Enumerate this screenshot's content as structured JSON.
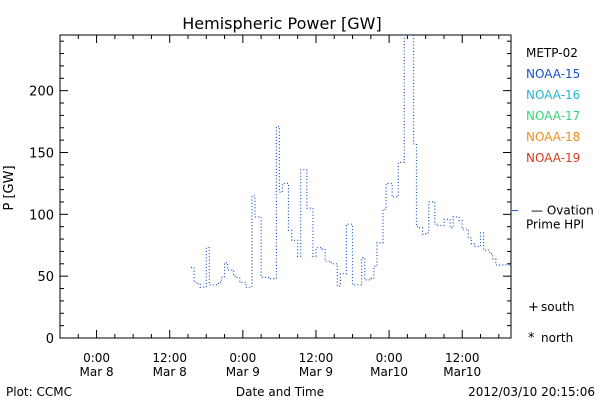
{
  "chart_data": {
    "type": "line",
    "title": "Hemispheric Power [GW]",
    "xlabel": "Date and Time",
    "ylabel": "P [GW]",
    "ylim": [
      0,
      245
    ],
    "xlim": [
      -6,
      68
    ],
    "x_unit": "hours from 0:00 Mar 8",
    "x_ticks": [
      {
        "value": 0,
        "line1": "0:00",
        "line2": "Mar 8"
      },
      {
        "value": 12,
        "line1": "12:00",
        "line2": "Mar 8"
      },
      {
        "value": 24,
        "line1": "0:00",
        "line2": "Mar 9"
      },
      {
        "value": 36,
        "line1": "12:00",
        "line2": "Mar 9"
      },
      {
        "value": 48,
        "line1": "0:00",
        "line2": "Mar10"
      },
      {
        "value": 60,
        "line1": "12:00",
        "line2": "Mar10"
      }
    ],
    "y_ticks": [
      0,
      50,
      100,
      150,
      200
    ],
    "y_minor_step": 10,
    "x_minor_step": 3,
    "grid": false,
    "legend_position": "right",
    "legend": [
      {
        "label": "METP-02",
        "color": "#000000"
      },
      {
        "label": "NOAA-15",
        "color": "#1a4fc4"
      },
      {
        "label": "NOAA-16",
        "color": "#22b5d6"
      },
      {
        "label": "NOAA-17",
        "color": "#33d67a"
      },
      {
        "label": "NOAA-18",
        "color": "#f08c1a"
      },
      {
        "label": "NOAA-19",
        "color": "#d93a1a"
      }
    ],
    "ovation": {
      "value": 103,
      "label_line1": "— Ovation",
      "label_line2": "Prime HPI",
      "color": "#1a4fc4"
    },
    "symbols": [
      {
        "symbol": "+",
        "label": "south"
      },
      {
        "symbol": "*",
        "label": "north"
      }
    ],
    "series": [
      {
        "name": "NOAA-15",
        "color": "#1a4fc4",
        "style": "dotted-step",
        "x": [
          15.5,
          16.0,
          16.5,
          17.0,
          18.0,
          18.5,
          19.5,
          20.0,
          20.5,
          21.0,
          21.5,
          22.5,
          23.0,
          23.5,
          24.5,
          25.5,
          26.0,
          27.0,
          27.5,
          28.5,
          29.5,
          30.0,
          30.5,
          31.5,
          32.0,
          33.0,
          33.5,
          34.5,
          35.5,
          36.0,
          37.0,
          37.5,
          38.5,
          39.5,
          40.0,
          41.0,
          42.0,
          42.5,
          43.5,
          44.0,
          45.0,
          45.5,
          46.0,
          47.0,
          47.5,
          48.5,
          49.5,
          50.5,
          51.0,
          52.0,
          52.5,
          53.0,
          53.5,
          54.0,
          54.5,
          55.5,
          56.0,
          57.0,
          58.0,
          58.5,
          59.5,
          60.0,
          61.0,
          61.5,
          62.0,
          63.0,
          63.5,
          64.5,
          65.0,
          65.5,
          66.5,
          67.0,
          67.5
        ],
        "y": [
          57,
          45,
          44,
          41,
          73,
          43,
          43,
          45,
          49,
          61,
          55,
          50,
          49,
          45,
          41,
          115,
          98,
          49,
          49,
          48,
          171,
          118,
          125,
          87,
          79,
          66,
          136,
          105,
          66,
          73,
          72,
          62,
          60,
          42,
          52,
          92,
          43,
          43,
          65,
          47,
          48,
          58,
          77,
          104,
          125,
          114,
          142,
          245,
          245,
          157,
          90,
          89,
          84,
          85,
          110,
          92,
          91,
          96,
          89,
          98,
          95,
          88,
          81,
          76,
          74,
          85,
          71,
          68,
          64,
          59,
          59,
          59,
          59
        ]
      }
    ]
  },
  "footer": {
    "plot_credit": "Plot: CCMC",
    "timestamp": "2012/03/10 20:15:06"
  }
}
